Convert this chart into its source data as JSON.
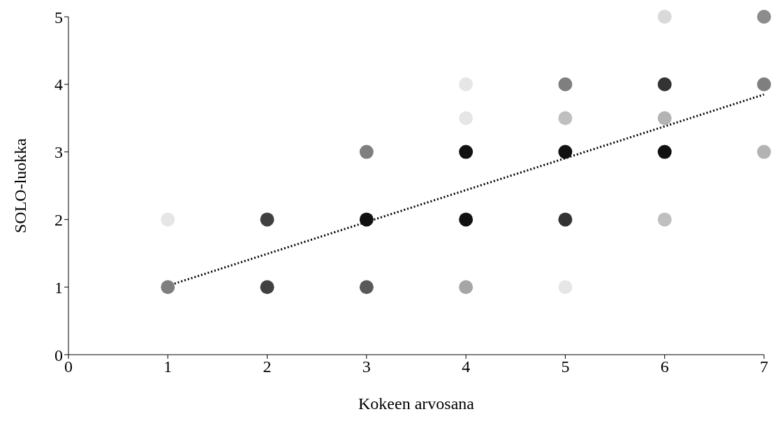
{
  "chart_data": {
    "type": "scatter",
    "xlabel": "Kokeen arvosana",
    "ylabel": "SOLO-luokka",
    "xlim": [
      0,
      7
    ],
    "xticks": [
      0,
      1,
      2,
      3,
      4,
      5,
      6,
      7
    ],
    "ylim": [
      0,
      5
    ],
    "yticks": [
      0,
      1,
      2,
      3,
      4,
      5
    ],
    "marker": "circle",
    "series": [
      {
        "x": [
          1,
          1,
          2,
          2,
          3,
          3,
          3,
          4,
          4,
          4,
          4,
          4,
          5,
          5,
          5,
          5,
          5,
          6,
          6,
          6,
          6,
          6,
          7,
          7,
          7
        ],
        "values": [
          2,
          1,
          2,
          1,
          3,
          2,
          1,
          4,
          3.5,
          3,
          2,
          1,
          4,
          3.5,
          3,
          2,
          1,
          5,
          4,
          3.5,
          3,
          2,
          5,
          4,
          3
        ],
        "colors": [
          "#e6e6e6",
          "#7f7f7f",
          "#404040",
          "#404040",
          "#7f7f7f",
          "#111111",
          "#595959",
          "#e6e6e6",
          "#e6e6e6",
          "#111111",
          "#111111",
          "#a6a6a6",
          "#7f7f7f",
          "#bfbfbf",
          "#111111",
          "#333333",
          "#e6e6e6",
          "#d9d9d9",
          "#333333",
          "#b3b3b3",
          "#111111",
          "#bfbfbf",
          "#8c8c8c",
          "#7f7f7f",
          "#b3b3b3"
        ]
      },
      {
        "type": "line",
        "x": [
          1,
          7
        ],
        "values": [
          1.02,
          3.85
        ],
        "color": "#000000",
        "line_style": "dotted",
        "marker": "none"
      }
    ]
  }
}
